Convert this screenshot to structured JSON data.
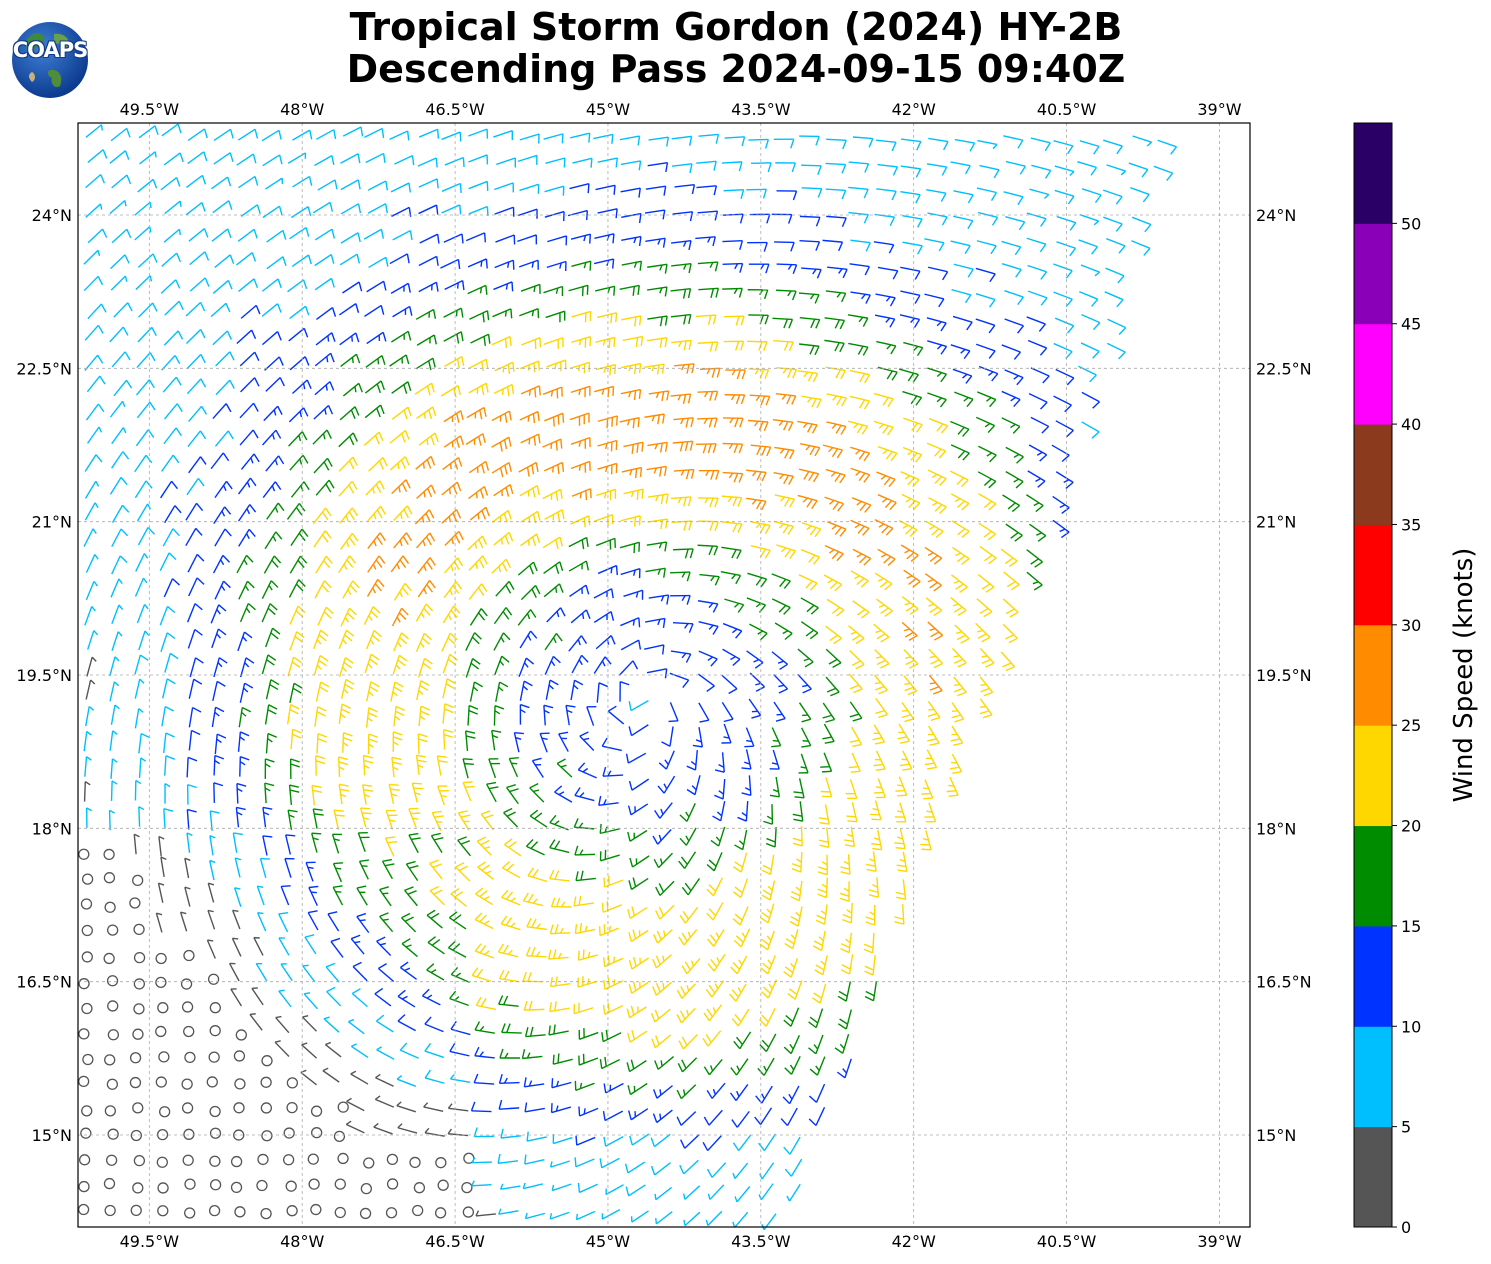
{
  "title": {
    "line1": "Tropical Storm Gordon (2024) HY-2B",
    "line2": "Descending Pass 2024-09-15 09:40Z"
  },
  "logo": {
    "text": "COAPS",
    "icon": "globe-logo-icon"
  },
  "map": {
    "lon_range": [
      -50.2,
      -38.7
    ],
    "lat_range": [
      14.1,
      24.9
    ],
    "lon_ticks": [
      {
        "value": -49.5,
        "label": "49.5°W"
      },
      {
        "value": -48.0,
        "label": "48°W"
      },
      {
        "value": -46.5,
        "label": "46.5°W"
      },
      {
        "value": -45.0,
        "label": "45°W"
      },
      {
        "value": -43.5,
        "label": "43.5°W"
      },
      {
        "value": -42.0,
        "label": "42°W"
      },
      {
        "value": -40.5,
        "label": "40.5°W"
      },
      {
        "value": -39.0,
        "label": "39°W"
      }
    ],
    "lat_ticks": [
      {
        "value": 24.0,
        "label": "24°N"
      },
      {
        "value": 22.5,
        "label": "22.5°N"
      },
      {
        "value": 21.0,
        "label": "21°N"
      },
      {
        "value": 19.5,
        "label": "19.5°N"
      },
      {
        "value": 18.0,
        "label": "18°N"
      },
      {
        "value": 16.5,
        "label": "16.5°N"
      },
      {
        "value": 15.0,
        "label": "15°N"
      }
    ],
    "gridlines": true,
    "storm_center": {
      "lon": -44.6,
      "lat": 19.3
    },
    "swath_east_edge": [
      {
        "lon": -39.5,
        "lat": 24.9
      },
      {
        "lon": -40.6,
        "lat": 21.0
      },
      {
        "lon": -42.0,
        "lat": 17.5
      },
      {
        "lon": -43.2,
        "lat": 14.1
      }
    ],
    "wind_field": "storm-centered cyclonic wind barbs"
  },
  "colorbar": {
    "label": "Wind Speed (knots)",
    "bins": [
      {
        "min": 0,
        "max": 5,
        "color": "#555555"
      },
      {
        "min": 5,
        "max": 10,
        "color": "#00bfff"
      },
      {
        "min": 10,
        "max": 15,
        "color": "#0033ff"
      },
      {
        "min": 15,
        "max": 20,
        "color": "#008c00"
      },
      {
        "min": 20,
        "max": 25,
        "color": "#ffd700"
      },
      {
        "min": 25,
        "max": 30,
        "color": "#ff8c00"
      },
      {
        "min": 30,
        "max": 35,
        "color": "#ff0000"
      },
      {
        "min": 35,
        "max": 40,
        "color": "#8b3a1e"
      },
      {
        "min": 40,
        "max": 45,
        "color": "#ff00ff"
      },
      {
        "min": 45,
        "max": 50,
        "color": "#8a00b8"
      },
      {
        "min": 50,
        "max": 55,
        "color": "#2a0066"
      }
    ],
    "tick_labels": [
      "0",
      "5",
      "10",
      "15",
      "20",
      "25",
      "30",
      "35",
      "40",
      "45",
      "50"
    ]
  }
}
